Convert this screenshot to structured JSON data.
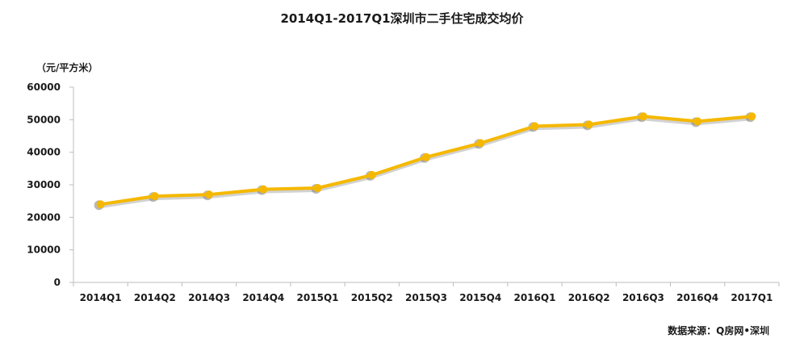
{
  "chart_data": {
    "type": "line",
    "title": "2014Q1-2017Q1深圳市二手住宅成交均价",
    "unit_label": "（元/平方米）",
    "categories": [
      "2014Q1",
      "2014Q2",
      "2014Q3",
      "2014Q4",
      "2015Q1",
      "2015Q2",
      "2015Q3",
      "2015Q4",
      "2016Q1",
      "2016Q2",
      "2016Q3",
      "2016Q4",
      "2017Q1"
    ],
    "series": [
      {
        "values": [
          24000,
          26500,
          27000,
          28600,
          29000,
          33000,
          38500,
          42800,
          48000,
          48500,
          51000,
          49500,
          51000
        ]
      }
    ],
    "ylim": [
      0,
      60000
    ],
    "yticks": [
      "0",
      "10000",
      "20000",
      "30000",
      "40000",
      "50000",
      "60000"
    ],
    "source": "数据来源：Q房网•深圳",
    "line_color": "#F5B800",
    "shadow_color": "#7f7f7f",
    "grid": false
  }
}
